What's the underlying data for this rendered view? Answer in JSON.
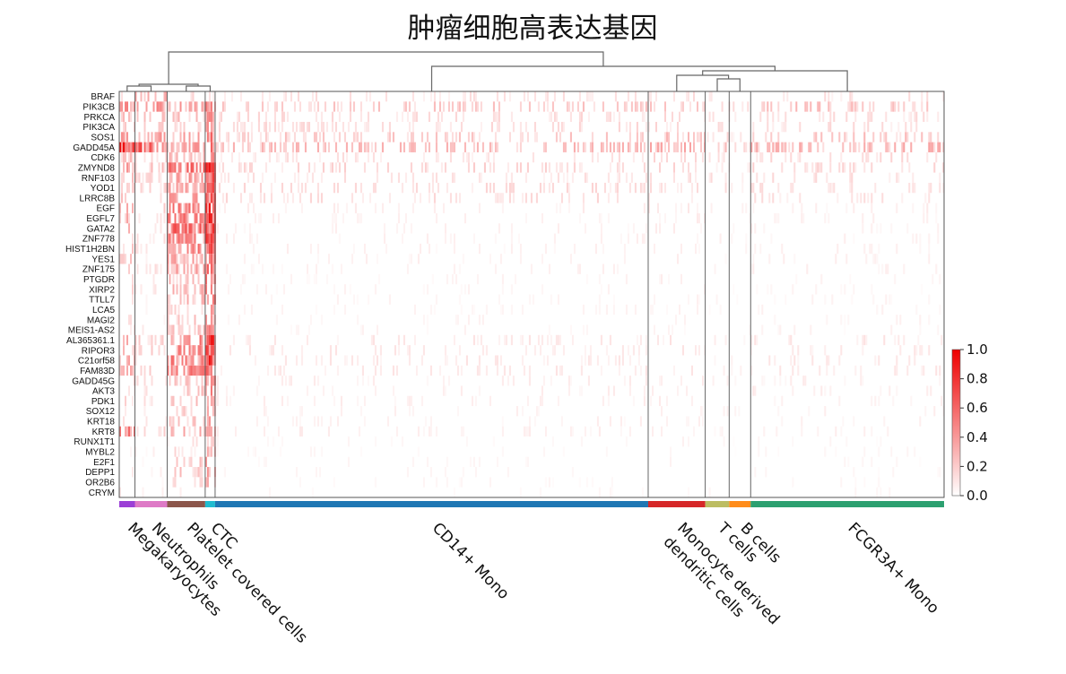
{
  "chart_data": {
    "type": "heatmap",
    "title": "肿瘤细胞高表达基因",
    "genes": [
      "BRAF",
      "PIK3CB",
      "PRKCA",
      "PIK3CA",
      "SOS1",
      "GADD45A",
      "CDK6",
      "ZMYND8",
      "RNF103",
      "YOD1",
      "LRRC8B",
      "EGF",
      "EGFL7",
      "GATA2",
      "ZNF778",
      "HIST1H2BN",
      "YES1",
      "ZNF175",
      "PTGDR",
      "XIRP2",
      "TTLL7",
      "LCA5",
      "MAGI2",
      "MEIS1-AS2",
      "AL365361.1",
      "RIPOR3",
      "C21orf58",
      "FAM83D",
      "GADD45G",
      "AKT3",
      "PDK1",
      "SOX12",
      "KRT18",
      "KRT8",
      "RUNX1T1",
      "MYBL2",
      "E2F1",
      "DEPP1",
      "OR2B6",
      "CRYM"
    ],
    "groups": [
      {
        "name": "Megakaryocytes",
        "color": "#9b3fd6",
        "share": 1.9
      },
      {
        "name": "Neutrophils",
        "color": "#de7ac6",
        "share": 3.9
      },
      {
        "name": "Platelet covered cells",
        "color": "#8c564b",
        "share": 4.6
      },
      {
        "name": "CTC",
        "color": "#20bcd0",
        "share": 1.2
      },
      {
        "name": "CD14+ Mono",
        "color": "#1f77b4",
        "share": 52.4
      },
      {
        "name": "Monocyte derived dendritic cells",
        "color": "#d62728",
        "share": 6.9
      },
      {
        "name": "T cells",
        "color": "#bcbd62",
        "share": 2.9
      },
      {
        "name": "B cells",
        "color": "#ff8c1a",
        "share": 2.6
      },
      {
        "name": "FCGR3A+ Mono",
        "color": "#2ca070",
        "share": 23.4
      }
    ],
    "group_label_lines": [
      [
        "Megakaryocytes"
      ],
      [
        "Neutrophils"
      ],
      [
        "Platelet covered cells"
      ],
      [
        "CTC"
      ],
      [
        "CD14+ Mono"
      ],
      [
        "Monocyte derived",
        "dendritic cells"
      ],
      [
        "T cells"
      ],
      [
        "B cells"
      ],
      [
        "FCGR3A+ Mono"
      ]
    ],
    "mean_expression": [
      [
        0.1,
        0.3,
        0.12,
        0.1,
        0.1,
        0.1,
        0.1,
        0.05,
        0.1
      ],
      [
        0.35,
        0.35,
        0.3,
        0.4,
        0.18,
        0.2,
        0.15,
        0.1,
        0.2
      ],
      [
        0.2,
        0.2,
        0.2,
        0.35,
        0.12,
        0.12,
        0.1,
        0.05,
        0.12
      ],
      [
        0.2,
        0.2,
        0.2,
        0.35,
        0.12,
        0.12,
        0.1,
        0.05,
        0.12
      ],
      [
        0.3,
        0.3,
        0.3,
        0.45,
        0.18,
        0.2,
        0.15,
        0.08,
        0.2
      ],
      [
        0.85,
        0.5,
        0.3,
        0.45,
        0.22,
        0.28,
        0.18,
        0.12,
        0.25
      ],
      [
        0.2,
        0.15,
        0.25,
        0.35,
        0.1,
        0.12,
        0.1,
        0.05,
        0.12
      ],
      [
        0.3,
        0.2,
        0.5,
        0.75,
        0.14,
        0.14,
        0.1,
        0.08,
        0.14
      ],
      [
        0.2,
        0.15,
        0.35,
        0.55,
        0.1,
        0.12,
        0.1,
        0.06,
        0.12
      ],
      [
        0.2,
        0.15,
        0.3,
        0.55,
        0.12,
        0.1,
        0.1,
        0.06,
        0.1
      ],
      [
        0.2,
        0.15,
        0.3,
        0.55,
        0.12,
        0.1,
        0.1,
        0.06,
        0.1
      ],
      [
        0.25,
        0.15,
        0.4,
        0.65,
        0.06,
        0.08,
        0.05,
        0.04,
        0.06
      ],
      [
        0.25,
        0.1,
        0.45,
        0.65,
        0.05,
        0.06,
        0.05,
        0.04,
        0.05
      ],
      [
        0.25,
        0.1,
        0.5,
        0.7,
        0.05,
        0.06,
        0.05,
        0.04,
        0.05
      ],
      [
        0.2,
        0.1,
        0.4,
        0.6,
        0.05,
        0.05,
        0.05,
        0.04,
        0.05
      ],
      [
        0.2,
        0.1,
        0.4,
        0.6,
        0.05,
        0.05,
        0.05,
        0.04,
        0.05
      ],
      [
        0.2,
        0.1,
        0.3,
        0.55,
        0.05,
        0.05,
        0.05,
        0.04,
        0.05
      ],
      [
        0.15,
        0.1,
        0.3,
        0.5,
        0.05,
        0.05,
        0.05,
        0.04,
        0.05
      ],
      [
        0.15,
        0.08,
        0.25,
        0.45,
        0.04,
        0.05,
        0.04,
        0.03,
        0.04
      ],
      [
        0.15,
        0.08,
        0.25,
        0.45,
        0.04,
        0.05,
        0.04,
        0.03,
        0.04
      ],
      [
        0.15,
        0.08,
        0.25,
        0.45,
        0.04,
        0.05,
        0.04,
        0.03,
        0.04
      ],
      [
        0.12,
        0.06,
        0.2,
        0.4,
        0.04,
        0.04,
        0.04,
        0.03,
        0.04
      ],
      [
        0.12,
        0.06,
        0.2,
        0.4,
        0.04,
        0.04,
        0.04,
        0.03,
        0.04
      ],
      [
        0.12,
        0.06,
        0.2,
        0.4,
        0.04,
        0.04,
        0.04,
        0.03,
        0.04
      ],
      [
        0.25,
        0.15,
        0.4,
        0.75,
        0.08,
        0.08,
        0.06,
        0.05,
        0.08
      ],
      [
        0.25,
        0.15,
        0.4,
        0.7,
        0.08,
        0.08,
        0.06,
        0.05,
        0.08
      ],
      [
        0.25,
        0.15,
        0.4,
        0.7,
        0.08,
        0.08,
        0.06,
        0.05,
        0.08
      ],
      [
        0.25,
        0.15,
        0.4,
        0.7,
        0.08,
        0.08,
        0.06,
        0.05,
        0.08
      ],
      [
        0.15,
        0.1,
        0.2,
        0.4,
        0.06,
        0.06,
        0.05,
        0.04,
        0.06
      ],
      [
        0.15,
        0.1,
        0.2,
        0.4,
        0.06,
        0.06,
        0.05,
        0.04,
        0.06
      ],
      [
        0.15,
        0.1,
        0.2,
        0.35,
        0.06,
        0.06,
        0.05,
        0.04,
        0.06
      ],
      [
        0.12,
        0.08,
        0.18,
        0.3,
        0.05,
        0.05,
        0.05,
        0.04,
        0.05
      ],
      [
        0.12,
        0.08,
        0.18,
        0.3,
        0.05,
        0.05,
        0.05,
        0.04,
        0.05
      ],
      [
        0.4,
        0.15,
        0.25,
        0.35,
        0.06,
        0.06,
        0.05,
        0.04,
        0.06
      ],
      [
        0.08,
        0.05,
        0.1,
        0.2,
        0.03,
        0.04,
        0.03,
        0.02,
        0.03
      ],
      [
        0.08,
        0.05,
        0.12,
        0.25,
        0.03,
        0.04,
        0.03,
        0.02,
        0.03
      ],
      [
        0.1,
        0.05,
        0.2,
        0.3,
        0.03,
        0.04,
        0.03,
        0.02,
        0.03
      ],
      [
        0.1,
        0.05,
        0.2,
        0.3,
        0.03,
        0.04,
        0.03,
        0.02,
        0.03
      ],
      [
        0.08,
        0.05,
        0.15,
        0.25,
        0.03,
        0.04,
        0.03,
        0.02,
        0.03
      ],
      [
        0.08,
        0.05,
        0.12,
        0.2,
        0.03,
        0.04,
        0.03,
        0.02,
        0.03
      ]
    ],
    "colorbar": {
      "min": 0.0,
      "max": 1.0,
      "ticks": [
        "0.0",
        "0.2",
        "0.4",
        "0.6",
        "0.8",
        "1.0"
      ],
      "low_color": "#ffffff",
      "high_color": "#ee0000"
    },
    "grid": false
  }
}
